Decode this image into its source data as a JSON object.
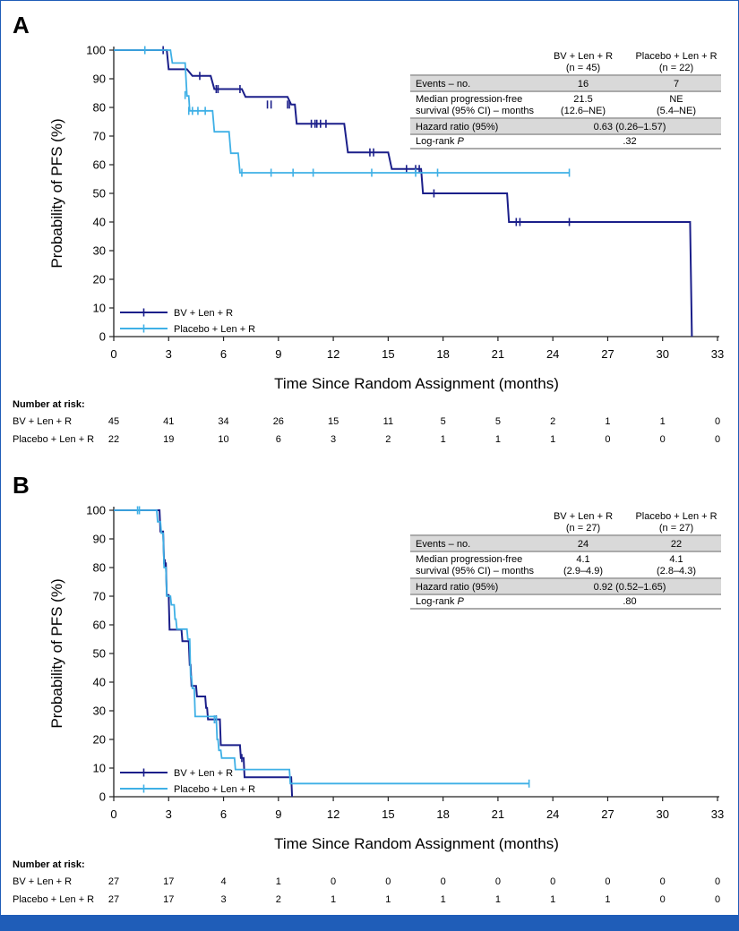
{
  "colors": {
    "bv": "#1b1f8a",
    "placebo": "#3fb0e6",
    "frame": "#1f5db8",
    "shade": "#d9d9d9"
  },
  "chart_data": [
    {
      "panel": "A",
      "type": "line",
      "title": "",
      "xlabel": "Time Since Random Assignment (months)",
      "ylabel": "Probability of PFS (%)",
      "xlim": [
        0,
        33
      ],
      "ylim": [
        0,
        100
      ],
      "x_ticks": [
        0,
        3,
        6,
        9,
        12,
        15,
        18,
        21,
        24,
        27,
        30,
        33
      ],
      "y_ticks": [
        0,
        10,
        20,
        30,
        40,
        50,
        60,
        70,
        80,
        90,
        100
      ],
      "series": [
        {
          "name": "BV + Len + R",
          "key": "bv",
          "steps": [
            [
              0,
              100
            ],
            [
              2.9,
              100
            ],
            [
              3,
              93.3
            ],
            [
              4,
              93.3
            ],
            [
              4.3,
              91
            ],
            [
              5.3,
              91
            ],
            [
              5.5,
              86.4
            ],
            [
              7,
              86.4
            ],
            [
              7.2,
              83.7
            ],
            [
              9.5,
              83.7
            ],
            [
              9.7,
              81
            ],
            [
              9.9,
              81
            ],
            [
              10,
              74.3
            ],
            [
              12.6,
              74.3
            ],
            [
              12.8,
              64.3
            ],
            [
              15,
              64.3
            ],
            [
              15.2,
              58.5
            ],
            [
              16.8,
              58.5
            ],
            [
              16.9,
              50
            ],
            [
              21.5,
              50
            ],
            [
              21.6,
              40
            ],
            [
              31.5,
              40
            ],
            [
              31.6,
              0
            ]
          ],
          "censors": [
            [
              2.7,
              100
            ],
            [
              4.7,
              91
            ],
            [
              5.6,
              86.4
            ],
            [
              5.7,
              86.4
            ],
            [
              6.9,
              86.4
            ],
            [
              8.4,
              81
            ],
            [
              8.6,
              81
            ],
            [
              9.5,
              81
            ],
            [
              9.6,
              81
            ],
            [
              10.8,
              74.3
            ],
            [
              11.0,
              74.3
            ],
            [
              11.1,
              74.3
            ],
            [
              11.3,
              74.3
            ],
            [
              11.6,
              74.3
            ],
            [
              14.0,
              64.3
            ],
            [
              14.2,
              64.3
            ],
            [
              16.0,
              58.5
            ],
            [
              16.5,
              58.5
            ],
            [
              16.7,
              58.5
            ],
            [
              17.5,
              50
            ],
            [
              22.0,
              40
            ],
            [
              22.2,
              40
            ],
            [
              24.9,
              40
            ]
          ]
        },
        {
          "name": "Placebo + Len + R",
          "key": "placebo",
          "steps": [
            [
              0,
              100
            ],
            [
              3.1,
              100
            ],
            [
              3.2,
              95.5
            ],
            [
              3.9,
              95.5
            ],
            [
              4.0,
              84
            ],
            [
              4.1,
              84
            ],
            [
              4.15,
              78.8
            ],
            [
              5.4,
              78.8
            ],
            [
              5.5,
              71.5
            ],
            [
              6.3,
              71.5
            ],
            [
              6.4,
              64
            ],
            [
              6.8,
              64
            ],
            [
              6.9,
              57.2
            ],
            [
              24.9,
              57.2
            ]
          ],
          "censors": [
            [
              1.7,
              100
            ],
            [
              3.9,
              84.3
            ],
            [
              4.1,
              78.8
            ],
            [
              4.3,
              78.8
            ],
            [
              4.6,
              78.8
            ],
            [
              5.0,
              78.8
            ],
            [
              7.0,
              57.2
            ],
            [
              8.6,
              57.2
            ],
            [
              9.8,
              57.2
            ],
            [
              10.9,
              57.2
            ],
            [
              14.1,
              57.2
            ],
            [
              16.5,
              57.2
            ],
            [
              17.7,
              57.2
            ],
            [
              24.9,
              57.2
            ]
          ]
        }
      ],
      "table": {
        "headers": [
          [
            "BV + Len + R",
            "(n = 45)"
          ],
          [
            "Placebo + Len + R",
            "(n = 22)"
          ]
        ],
        "events_label": "Events – no.",
        "events": [
          "16",
          "7"
        ],
        "median_label": [
          "Median progression-free",
          "survival (95% CI) – months"
        ],
        "median": [
          [
            "21.5",
            "(12.6–NE)"
          ],
          [
            "NE",
            "(5.4–NE)"
          ]
        ],
        "hr_label": "Hazard ratio (95%)",
        "hr": "0.63 (0.26–1.57)",
        "logrank_label": "Log-rank P",
        "logrank": ".32"
      },
      "risk": {
        "header": "Number at risk:",
        "rows": [
          {
            "label": "BV + Len + R",
            "values": [
              "45",
              "41",
              "34",
              "26",
              "15",
              "11",
              "5",
              "5",
              "2",
              "1",
              "1",
              "0"
            ]
          },
          {
            "label": "Placebo + Len + R",
            "values": [
              "22",
              "19",
              "10",
              "6",
              "3",
              "2",
              "1",
              "1",
              "1",
              "0",
              "0",
              "0"
            ]
          }
        ]
      }
    },
    {
      "panel": "B",
      "type": "line",
      "title": "",
      "xlabel": "Time Since Random Assignment (months)",
      "ylabel": "Probability of PFS (%)",
      "xlim": [
        0,
        33
      ],
      "ylim": [
        0,
        100
      ],
      "x_ticks": [
        0,
        3,
        6,
        9,
        12,
        15,
        18,
        21,
        24,
        27,
        30,
        33
      ],
      "y_ticks": [
        0,
        10,
        20,
        30,
        40,
        50,
        60,
        70,
        80,
        90,
        100
      ],
      "series": [
        {
          "name": "BV + Len + R",
          "key": "bv",
          "steps": [
            [
              0,
              100
            ],
            [
              2.5,
              100
            ],
            [
              2.55,
              92.6
            ],
            [
              2.7,
              92.6
            ],
            [
              2.75,
              81.5
            ],
            [
              2.85,
              81.5
            ],
            [
              2.9,
              70.4
            ],
            [
              3.0,
              70.4
            ],
            [
              3.05,
              58.3
            ],
            [
              3.7,
              58.3
            ],
            [
              3.75,
              54.3
            ],
            [
              4.1,
              54.3
            ],
            [
              4.15,
              46
            ],
            [
              4.2,
              46
            ],
            [
              4.25,
              38.7
            ],
            [
              4.5,
              38.7
            ],
            [
              4.55,
              35
            ],
            [
              5.0,
              35
            ],
            [
              5.05,
              31
            ],
            [
              5.1,
              31
            ],
            [
              5.15,
              27
            ],
            [
              5.8,
              27
            ],
            [
              5.85,
              18
            ],
            [
              6.9,
              18
            ],
            [
              6.95,
              13.5
            ],
            [
              7.1,
              13.5
            ],
            [
              7.15,
              6.8
            ],
            [
              9.7,
              6.8
            ],
            [
              9.75,
              0
            ]
          ],
          "censors": [
            [
              2.8,
              81.5
            ],
            [
              5.6,
              27
            ],
            [
              7.0,
              13.5
            ]
          ]
        },
        {
          "name": "Placebo + Len + R",
          "key": "placebo",
          "steps": [
            [
              0,
              100
            ],
            [
              2.35,
              100
            ],
            [
              2.4,
              96
            ],
            [
              2.55,
              96
            ],
            [
              2.6,
              92
            ],
            [
              2.7,
              92
            ],
            [
              2.75,
              80
            ],
            [
              2.85,
              80
            ],
            [
              2.9,
              70
            ],
            [
              3.1,
              70
            ],
            [
              3.15,
              67
            ],
            [
              3.3,
              67
            ],
            [
              3.35,
              62
            ],
            [
              3.4,
              62
            ],
            [
              3.45,
              58.5
            ],
            [
              4.0,
              58.5
            ],
            [
              4.05,
              55
            ],
            [
              4.15,
              55
            ],
            [
              4.2,
              42
            ],
            [
              4.25,
              42
            ],
            [
              4.3,
              37.8
            ],
            [
              4.4,
              37.8
            ],
            [
              4.45,
              28
            ],
            [
              5.6,
              28
            ],
            [
              5.65,
              20
            ],
            [
              5.7,
              20
            ],
            [
              5.75,
              16.2
            ],
            [
              5.85,
              16.2
            ],
            [
              5.9,
              13.5
            ],
            [
              6.6,
              13.5
            ],
            [
              6.65,
              9.5
            ],
            [
              9.6,
              9.5
            ],
            [
              9.65,
              4.6
            ],
            [
              22.7,
              4.6
            ]
          ],
          "censors": [
            [
              1.3,
              100
            ],
            [
              1.4,
              100
            ],
            [
              5.5,
              27
            ],
            [
              22.7,
              4.6
            ]
          ]
        }
      ],
      "table": {
        "headers": [
          [
            "BV + Len + R",
            "(n = 27)"
          ],
          [
            "Placebo + Len + R",
            "(n = 27)"
          ]
        ],
        "events_label": "Events – no.",
        "events": [
          "24",
          "22"
        ],
        "median_label": [
          "Median progression-free",
          "survival (95% CI) – months"
        ],
        "median": [
          [
            "4.1",
            "(2.9–4.9)"
          ],
          [
            "4.1",
            "(2.8–4.3)"
          ]
        ],
        "hr_label": "Hazard ratio (95%)",
        "hr": "0.92 (0.52–1.65)",
        "logrank_label": "Log-rank P",
        "logrank": ".80"
      },
      "risk": {
        "header": "Number at risk:",
        "rows": [
          {
            "label": "BV + Len + R",
            "values": [
              "27",
              "17",
              "4",
              "1",
              "0",
              "0",
              "0",
              "0",
              "0",
              "0",
              "0",
              "0"
            ]
          },
          {
            "label": "Placebo + Len + R",
            "values": [
              "27",
              "17",
              "3",
              "2",
              "1",
              "1",
              "1",
              "1",
              "1",
              "1",
              "0",
              "0"
            ]
          }
        ]
      }
    }
  ]
}
